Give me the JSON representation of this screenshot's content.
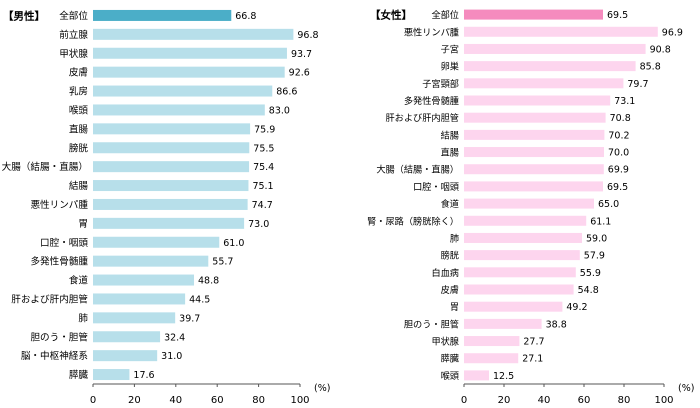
{
  "chart_data": [
    {
      "type": "bar",
      "orientation": "horizontal",
      "title": "【男性】",
      "xlim": [
        0,
        100
      ],
      "xticks": [
        "0",
        "20",
        "40",
        "60",
        "80",
        "100"
      ],
      "unit": "(%)",
      "highlight_color": "#4BAEC8",
      "bar_color": "#B7DFEA",
      "categories": [
        "全部位",
        "前立腺",
        "甲状腺",
        "皮膚",
        "乳房",
        "喉頭",
        "直腸",
        "膀胱",
        "大腸（結腸・直腸）",
        "結腸",
        "悪性リンパ腫",
        "胃",
        "口腔・咽頭",
        "多発性骨髄腫",
        "食道",
        "肝および肝内胆管",
        "肺",
        "胆のう・胆管",
        "脳・中枢神経系",
        "膵臓"
      ],
      "values": [
        66.8,
        96.8,
        93.7,
        92.6,
        86.6,
        83.0,
        75.9,
        75.5,
        75.4,
        75.1,
        74.7,
        73.0,
        61.0,
        55.7,
        48.8,
        44.5,
        39.7,
        32.4,
        31.0,
        17.6
      ],
      "value_labels": [
        "66.8",
        "96.8",
        "93.7",
        "92.6",
        "86.6",
        "83.0",
        "75.9",
        "75.5",
        "75.4",
        "75.1",
        "74.7",
        "73.0",
        "61.0",
        "55.7",
        "48.8",
        "44.5",
        "39.7",
        "32.4",
        "31.0",
        "17.6"
      ]
    },
    {
      "type": "bar",
      "orientation": "horizontal",
      "title": "【女性】",
      "xlim": [
        0,
        100
      ],
      "xticks": [
        "0",
        "20",
        "40",
        "60",
        "80",
        "100"
      ],
      "unit": "(%)",
      "highlight_color": "#F58BBE",
      "bar_color": "#FDD5EE",
      "categories": [
        "全部位",
        "悪性リンパ腫",
        "子宮",
        "卵巣",
        "子宮頸部",
        "多発性骨髄腫",
        "肝および肝内胆管",
        "結腸",
        "直腸",
        "大腸（結腸・直腸）",
        "口腔・咽頭",
        "食道",
        "腎・尿路（膀胱除く）",
        "肺",
        "膀胱",
        "白血病",
        "皮膚",
        "胃",
        "胆のう・胆管",
        "甲状腺",
        "膵臓",
        "喉頭"
      ],
      "values": [
        69.5,
        96.9,
        90.8,
        85.8,
        79.7,
        73.1,
        70.8,
        70.2,
        70.0,
        69.9,
        69.5,
        65.0,
        61.1,
        59.0,
        57.9,
        55.9,
        54.8,
        49.2,
        38.8,
        27.7,
        27.1,
        12.5
      ],
      "value_labels": [
        "69.5",
        "96.9",
        "90.8",
        "85.8",
        "79.7",
        "73.1",
        "70.8",
        "70.2",
        "70.0",
        "69.9",
        "69.5",
        "65.0",
        "61.1",
        "59.0",
        "57.9",
        "55.9",
        "54.8",
        "49.2",
        "38.8",
        "27.7",
        "27.1",
        "12.5"
      ]
    }
  ]
}
